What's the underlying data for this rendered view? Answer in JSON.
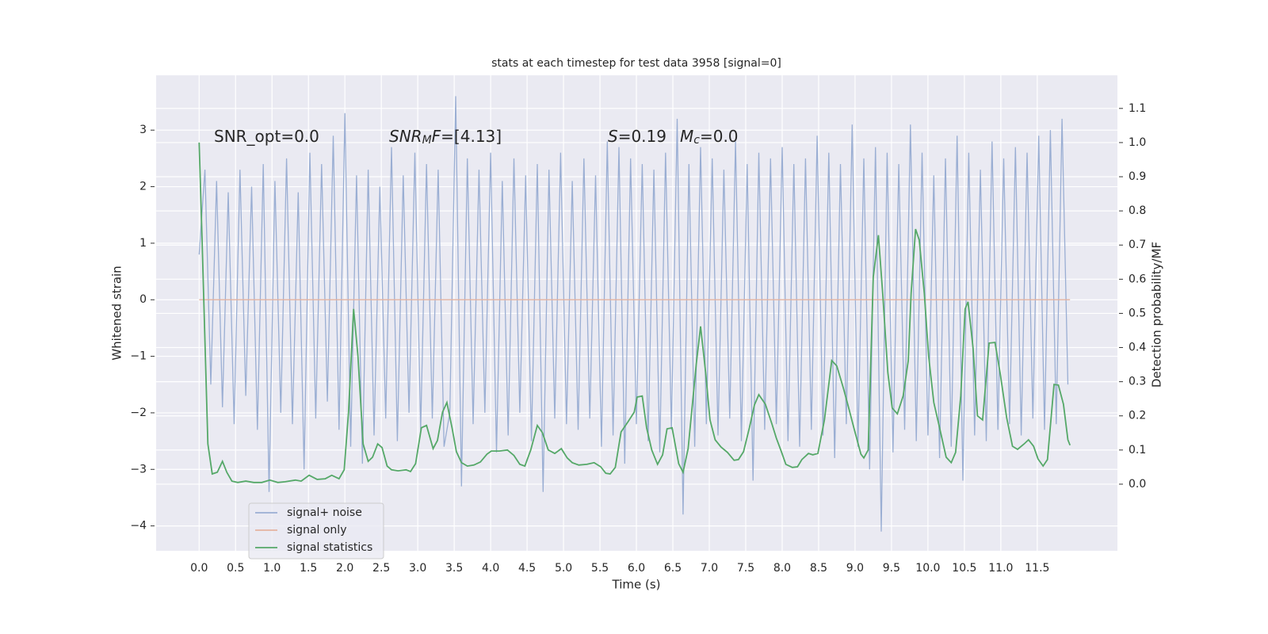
{
  "chart_data": {
    "type": "line",
    "title": "stats at each timestep for test data 3958 [signal=0]",
    "xlabel": "Time (s)",
    "ylabel": "Whitened strain",
    "y2label": "Detection probability/MF",
    "annotations": [
      [
        {
          "text": "SNR_opt=0.0"
        }
      ],
      [
        {
          "text": "SNR",
          "style": "italic"
        },
        {
          "text": "M",
          "style": "sub"
        },
        {
          "text": "F",
          "style": "italic"
        },
        {
          "text": "=[4.13]"
        }
      ],
      [
        {
          "text": "S",
          "style": "italic"
        },
        {
          "text": "=0.19"
        }
      ],
      [
        {
          "text": "M",
          "style": "italic"
        },
        {
          "text": "c",
          "style": "sub"
        },
        {
          "text": "=0.0"
        }
      ]
    ],
    "xlim": [
      -0.59,
      12.6
    ],
    "ylim": [
      -4.44,
      3.97
    ],
    "y2lim": [
      -0.195,
      1.197
    ],
    "xticks": [
      {
        "value": 0,
        "label": "0.0"
      },
      0.5,
      {
        "value": 1,
        "label": "1.0"
      },
      1.5,
      {
        "value": 2,
        "label": "2.0"
      },
      2.5,
      {
        "value": 3,
        "label": "3.0"
      },
      3.5,
      {
        "value": 4,
        "label": "4.0"
      },
      4.5,
      {
        "value": 5,
        "label": "5.0"
      },
      5.5,
      {
        "value": 6,
        "label": "6.0"
      },
      6.5,
      {
        "value": 7,
        "label": "7.0"
      },
      7.5,
      {
        "value": 8,
        "label": "8.0"
      },
      8.5,
      {
        "value": 9,
        "label": "9.0"
      },
      9.5,
      {
        "value": 10,
        "label": "10.0"
      },
      10.5,
      {
        "value": 11,
        "label": "11.0"
      },
      11.5
    ],
    "yticks": [
      {
        "value": -4,
        "label": "−4"
      },
      {
        "value": -3,
        "label": "−3"
      },
      {
        "value": -2,
        "label": "−2"
      },
      {
        "value": -1,
        "label": "−1"
      },
      0,
      1,
      2,
      3
    ],
    "y2ticks": [
      {
        "value": 0,
        "label": "0.0"
      },
      0.1,
      0.2,
      0.3,
      0.4,
      0.5,
      0.6,
      0.7,
      0.8,
      0.9,
      {
        "value": 1,
        "label": "1.0"
      },
      1.1
    ],
    "grid": true,
    "legend": "lower left",
    "series": [
      {
        "name": "signal+ noise",
        "color": "#9aaed3",
        "x": [
          0,
          0.08,
          0.16,
          0.24,
          0.32,
          0.4,
          0.48,
          0.56,
          0.64,
          0.72,
          0.8,
          0.88,
          0.96,
          1.04,
          1.12,
          1.2,
          1.28,
          1.36,
          1.44,
          1.52,
          1.6,
          1.68,
          1.76,
          1.84,
          1.92,
          2,
          2.08,
          2.16,
          2.24,
          2.32,
          2.4,
          2.48,
          2.56,
          2.64,
          2.72,
          2.8,
          2.88,
          2.96,
          3.04,
          3.12,
          3.2,
          3.28,
          3.36,
          3.44,
          3.52,
          3.6,
          3.68,
          3.76,
          3.84,
          3.92,
          4,
          4.08,
          4.16,
          4.24,
          4.32,
          4.4,
          4.48,
          4.56,
          4.64,
          4.72,
          4.8,
          4.88,
          4.96,
          5.04,
          5.12,
          5.2,
          5.28,
          5.36,
          5.44,
          5.52,
          5.6,
          5.68,
          5.76,
          5.84,
          5.92,
          6,
          6.08,
          6.16,
          6.24,
          6.32,
          6.4,
          6.48,
          6.56,
          6.64,
          6.72,
          6.8,
          6.88,
          6.96,
          7.04,
          7.12,
          7.2,
          7.28,
          7.36,
          7.44,
          7.52,
          7.6,
          7.68,
          7.76,
          7.84,
          7.92,
          8,
          8.08,
          8.16,
          8.24,
          8.32,
          8.4,
          8.48,
          8.56,
          8.64,
          8.72,
          8.8,
          8.88,
          8.96,
          9.04,
          9.12,
          9.2,
          9.28,
          9.36,
          9.44,
          9.52,
          9.6,
          9.68,
          9.76,
          9.84,
          9.92,
          10,
          10.08,
          10.16,
          10.24,
          10.32,
          10.4,
          10.48,
          10.56,
          10.64,
          10.72,
          10.8,
          10.88,
          10.96,
          11.04,
          11.12,
          11.2,
          11.28,
          11.36,
          11.44,
          11.52,
          11.6,
          11.68,
          11.76,
          11.84,
          11.92
        ],
        "values": [
          0.8,
          2.3,
          -1.5,
          2.1,
          -1.9,
          1.9,
          -2.2,
          2.3,
          -1.7,
          2.0,
          -2.3,
          2.4,
          -3.4,
          2.1,
          -2.0,
          2.5,
          -2.2,
          1.9,
          -3.0,
          2.6,
          -2.1,
          2.4,
          -1.8,
          2.9,
          -2.3,
          3.3,
          -2.6,
          2.2,
          -2.9,
          2.3,
          -2.4,
          2.0,
          -2.1,
          2.7,
          -2.5,
          2.2,
          -2.0,
          2.6,
          -2.3,
          2.4,
          -2.1,
          2.3,
          -2.6,
          -2.0,
          3.6,
          -3.3,
          2.5,
          -2.2,
          2.3,
          -2.0,
          2.6,
          -2.7,
          2.1,
          -2.4,
          2.5,
          -2.0,
          2.2,
          -2.5,
          2.4,
          -3.4,
          2.3,
          -2.1,
          2.6,
          -2.2,
          2.1,
          -2.3,
          2.5,
          -2.1,
          2.2,
          -2.6,
          2.8,
          -2.4,
          2.7,
          -2.9,
          2.5,
          -2.2,
          2.4,
          -2.5,
          2.3,
          -2.7,
          2.6,
          -2.3,
          3.2,
          -3.8,
          2.4,
          -2.6,
          2.7,
          -2.2,
          2.5,
          -2.4,
          2.3,
          -2.1,
          2.8,
          -2.5,
          2.4,
          -3.2,
          2.6,
          -2.3,
          2.5,
          -2.2,
          2.7,
          -2.5,
          2.4,
          -2.6,
          2.5,
          -2.3,
          2.9,
          -2.4,
          2.6,
          -2.8,
          2.4,
          -2.2,
          3.1,
          -2.6,
          2.5,
          -3.0,
          2.7,
          -4.1,
          2.6,
          -2.7,
          2.4,
          -2.3,
          3.1,
          -2.5,
          2.6,
          -2.4,
          2.2,
          -2.8,
          2.5,
          -2.6,
          2.9,
          -3.2,
          2.6,
          -2.4,
          2.3,
          -2.5,
          2.8,
          -2.3,
          2.5,
          -2.2,
          2.7,
          -2.4,
          2.6,
          -2.1,
          2.9,
          -2.3,
          3.0,
          -2.2,
          3.2,
          -1.5
        ]
      },
      {
        "name": "signal only",
        "color": "#e4b3a0",
        "x": [
          0,
          11.95
        ],
        "values": [
          0,
          0
        ]
      },
      {
        "name": "signal statistics",
        "color": "#55a868",
        "axis": "y2",
        "x": [
          0,
          0.04,
          0.12,
          0.18,
          0.25,
          0.32,
          0.38,
          0.45,
          0.53,
          0.64,
          0.75,
          0.86,
          0.97,
          1.08,
          1.18,
          1.32,
          1.4,
          1.51,
          1.62,
          1.73,
          1.82,
          1.92,
          1.99,
          2.05,
          2.12,
          2.18,
          2.25,
          2.32,
          2.38,
          2.45,
          2.51,
          2.58,
          2.64,
          2.73,
          2.84,
          2.9,
          2.97,
          3.05,
          3.12,
          3.21,
          3.27,
          3.34,
          3.4,
          3.47,
          3.53,
          3.6,
          3.68,
          3.77,
          3.86,
          3.95,
          4.01,
          4.12,
          4.23,
          4.32,
          4.4,
          4.47,
          4.55,
          4.64,
          4.71,
          4.79,
          4.88,
          4.97,
          5.05,
          5.12,
          5.21,
          5.32,
          5.42,
          5.51,
          5.58,
          5.64,
          5.71,
          5.79,
          5.88,
          5.97,
          6.01,
          6.08,
          6.14,
          6.21,
          6.29,
          6.36,
          6.42,
          6.49,
          6.58,
          6.64,
          6.71,
          6.82,
          6.88,
          6.95,
          7.01,
          7.08,
          7.16,
          7.25,
          7.34,
          7.4,
          7.47,
          7.55,
          7.62,
          7.68,
          7.77,
          7.86,
          7.92,
          7.99,
          8.05,
          8.14,
          8.21,
          8.27,
          8.36,
          8.42,
          8.49,
          8.58,
          8.68,
          8.75,
          8.84,
          8.9,
          8.99,
          9.08,
          9.12,
          9.18,
          9.25,
          9.32,
          9.38,
          9.45,
          9.51,
          9.58,
          9.66,
          9.73,
          9.77,
          9.83,
          9.88,
          9.95,
          10.01,
          10.08,
          10.16,
          10.25,
          10.32,
          10.38,
          10.45,
          10.51,
          10.55,
          10.62,
          10.68,
          10.75,
          10.84,
          10.92,
          10.99,
          11.08,
          11.16,
          11.23,
          11.32,
          11.38,
          11.45,
          11.51,
          11.58,
          11.64,
          11.73,
          11.79,
          11.86,
          11.92,
          11.95
        ],
        "values": [
          1.0,
          0.722,
          0.118,
          0.03,
          0.035,
          0.067,
          0.035,
          0.009,
          0.005,
          0.009,
          0.005,
          0.005,
          0.012,
          0.005,
          0.007,
          0.012,
          0.009,
          0.026,
          0.014,
          0.016,
          0.026,
          0.016,
          0.042,
          0.211,
          0.513,
          0.374,
          0.118,
          0.067,
          0.079,
          0.118,
          0.107,
          0.053,
          0.042,
          0.039,
          0.042,
          0.037,
          0.06,
          0.165,
          0.172,
          0.104,
          0.128,
          0.211,
          0.239,
          0.165,
          0.095,
          0.063,
          0.053,
          0.056,
          0.065,
          0.088,
          0.097,
          0.097,
          0.1,
          0.084,
          0.058,
          0.053,
          0.1,
          0.172,
          0.151,
          0.1,
          0.09,
          0.104,
          0.077,
          0.063,
          0.056,
          0.058,
          0.063,
          0.051,
          0.032,
          0.03,
          0.049,
          0.153,
          0.181,
          0.211,
          0.255,
          0.258,
          0.165,
          0.1,
          0.058,
          0.086,
          0.162,
          0.165,
          0.06,
          0.035,
          0.104,
          0.35,
          0.462,
          0.327,
          0.188,
          0.13,
          0.109,
          0.093,
          0.07,
          0.072,
          0.095,
          0.165,
          0.232,
          0.262,
          0.234,
          0.176,
          0.135,
          0.095,
          0.058,
          0.049,
          0.051,
          0.072,
          0.09,
          0.086,
          0.09,
          0.188,
          0.362,
          0.346,
          0.281,
          0.234,
          0.16,
          0.088,
          0.077,
          0.1,
          0.606,
          0.729,
          0.555,
          0.327,
          0.223,
          0.206,
          0.258,
          0.362,
          0.559,
          0.747,
          0.715,
          0.559,
          0.374,
          0.239,
          0.165,
          0.079,
          0.063,
          0.093,
          0.258,
          0.513,
          0.534,
          0.397,
          0.2,
          0.188,
          0.413,
          0.415,
          0.327,
          0.195,
          0.111,
          0.102,
          0.118,
          0.13,
          0.111,
          0.074,
          0.053,
          0.072,
          0.292,
          0.29,
          0.234,
          0.13,
          0.114
        ]
      }
    ]
  }
}
